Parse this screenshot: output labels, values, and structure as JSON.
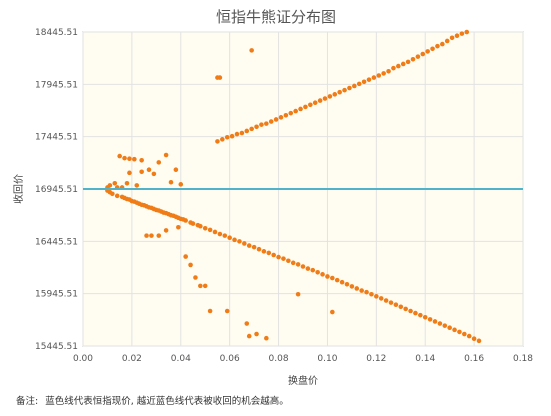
{
  "chart_data": {
    "type": "scatter",
    "title": "恒指牛熊证分布图",
    "xlabel": "换盘价",
    "ylabel": "收回价",
    "xlim": [
      0,
      0.18
    ],
    "ylim": [
      15445.51,
      18445.51
    ],
    "x_ticks": [
      "0.00",
      "0.02",
      "0.04",
      "0.06",
      "0.08",
      "0.10",
      "0.12",
      "0.14",
      "0.16",
      "0.18"
    ],
    "y_ticks": [
      "15445.51",
      "15945.51",
      "16445.51",
      "16945.51",
      "17445.51",
      "17945.51",
      "18445.51"
    ],
    "grid": true,
    "reference_line": {
      "y": 16945.51,
      "color": "#4fb3c9"
    },
    "marker_color": "#f07c17",
    "plot_background": "#fffdf2",
    "series": [
      {
        "values": [
          [
            0.01,
            16960
          ],
          [
            0.01,
            16945
          ],
          [
            0.01,
            16930
          ],
          [
            0.011,
            16915
          ],
          [
            0.011,
            16980
          ],
          [
            0.012,
            16900
          ],
          [
            0.014,
            16960
          ],
          [
            0.014,
            16880
          ],
          [
            0.016,
            16870
          ],
          [
            0.017,
            16860
          ],
          [
            0.018,
            16850
          ],
          [
            0.019,
            16845
          ],
          [
            0.02,
            16830
          ],
          [
            0.021,
            16825
          ],
          [
            0.022,
            16815
          ],
          [
            0.023,
            16805
          ],
          [
            0.024,
            16795
          ],
          [
            0.025,
            16790
          ],
          [
            0.026,
            16780
          ],
          [
            0.027,
            16770
          ],
          [
            0.028,
            16765
          ],
          [
            0.029,
            16755
          ],
          [
            0.03,
            16745
          ],
          [
            0.031,
            16740
          ],
          [
            0.032,
            16730
          ],
          [
            0.033,
            16720
          ],
          [
            0.034,
            16715
          ],
          [
            0.035,
            16705
          ],
          [
            0.036,
            16695
          ],
          [
            0.037,
            16690
          ],
          [
            0.038,
            16680
          ],
          [
            0.039,
            16670
          ],
          [
            0.04,
            16660
          ],
          [
            0.041,
            16655
          ],
          [
            0.042,
            16645
          ],
          [
            0.044,
            16625
          ],
          [
            0.045,
            16615
          ],
          [
            0.047,
            16600
          ],
          [
            0.048,
            16590
          ],
          [
            0.05,
            16570
          ],
          [
            0.052,
            16555
          ],
          [
            0.054,
            16535
          ],
          [
            0.056,
            16515
          ],
          [
            0.058,
            16500
          ],
          [
            0.06,
            16480
          ],
          [
            0.062,
            16460
          ],
          [
            0.064,
            16445
          ],
          [
            0.066,
            16425
          ],
          [
            0.068,
            16405
          ],
          [
            0.07,
            16390
          ],
          [
            0.072,
            16370
          ],
          [
            0.074,
            16350
          ],
          [
            0.076,
            16335
          ],
          [
            0.078,
            16315
          ],
          [
            0.08,
            16295
          ],
          [
            0.082,
            16280
          ],
          [
            0.084,
            16260
          ],
          [
            0.086,
            16240
          ],
          [
            0.088,
            16225
          ],
          [
            0.09,
            16205
          ],
          [
            0.092,
            16185
          ],
          [
            0.094,
            16170
          ],
          [
            0.096,
            16150
          ],
          [
            0.098,
            16130
          ],
          [
            0.1,
            16110
          ],
          [
            0.102,
            16095
          ],
          [
            0.104,
            16075
          ],
          [
            0.106,
            16055
          ],
          [
            0.108,
            16035
          ],
          [
            0.11,
            16015
          ],
          [
            0.112,
            15995
          ],
          [
            0.114,
            15975
          ],
          [
            0.116,
            15960
          ],
          [
            0.118,
            15940
          ],
          [
            0.12,
            15920
          ],
          [
            0.122,
            15900
          ],
          [
            0.124,
            15880
          ],
          [
            0.126,
            15860
          ],
          [
            0.128,
            15840
          ],
          [
            0.13,
            15820
          ],
          [
            0.132,
            15800
          ],
          [
            0.134,
            15780
          ],
          [
            0.136,
            15760
          ],
          [
            0.138,
            15740
          ],
          [
            0.14,
            15720
          ],
          [
            0.142,
            15700
          ],
          [
            0.144,
            15680
          ],
          [
            0.146,
            15660
          ],
          [
            0.148,
            15640
          ],
          [
            0.15,
            15620
          ],
          [
            0.152,
            15600
          ],
          [
            0.154,
            15580
          ],
          [
            0.156,
            15560
          ],
          [
            0.158,
            15540
          ],
          [
            0.16,
            15515
          ],
          [
            0.162,
            15495
          ],
          [
            0.026,
            16500
          ],
          [
            0.028,
            16500
          ],
          [
            0.031,
            16500
          ],
          [
            0.034,
            16550
          ],
          [
            0.039,
            16580
          ],
          [
            0.042,
            16300
          ],
          [
            0.044,
            16220
          ],
          [
            0.046,
            16100
          ],
          [
            0.048,
            16020
          ],
          [
            0.05,
            16020
          ],
          [
            0.052,
            15780
          ],
          [
            0.059,
            15780
          ],
          [
            0.067,
            15660
          ],
          [
            0.068,
            15540
          ],
          [
            0.071,
            15560
          ],
          [
            0.075,
            15520
          ],
          [
            0.088,
            15940
          ],
          [
            0.102,
            15770
          ],
          [
            0.015,
            17260
          ],
          [
            0.017,
            17240
          ],
          [
            0.019,
            17235
          ],
          [
            0.021,
            17230
          ],
          [
            0.024,
            17110
          ],
          [
            0.024,
            17220
          ],
          [
            0.027,
            17130
          ],
          [
            0.029,
            17090
          ],
          [
            0.031,
            17200
          ],
          [
            0.034,
            17270
          ],
          [
            0.036,
            17010
          ],
          [
            0.038,
            17130
          ],
          [
            0.04,
            16990
          ],
          [
            0.055,
            18010
          ],
          [
            0.056,
            18010
          ],
          [
            0.069,
            18270
          ],
          [
            0.013,
            17000
          ],
          [
            0.016,
            16960
          ],
          [
            0.019,
            17100
          ],
          [
            0.022,
            16980
          ],
          [
            0.018,
            17000
          ],
          [
            0.055,
            17400
          ],
          [
            0.057,
            17420
          ],
          [
            0.059,
            17440
          ],
          [
            0.061,
            17450
          ],
          [
            0.063,
            17470
          ],
          [
            0.065,
            17480
          ],
          [
            0.067,
            17500
          ],
          [
            0.069,
            17520
          ],
          [
            0.071,
            17540
          ],
          [
            0.073,
            17560
          ],
          [
            0.075,
            17570
          ],
          [
            0.077,
            17590
          ],
          [
            0.079,
            17610
          ],
          [
            0.081,
            17630
          ],
          [
            0.083,
            17650
          ],
          [
            0.085,
            17670
          ],
          [
            0.087,
            17690
          ],
          [
            0.089,
            17710
          ],
          [
            0.091,
            17730
          ],
          [
            0.093,
            17750
          ],
          [
            0.095,
            17770
          ],
          [
            0.097,
            17790
          ],
          [
            0.099,
            17810
          ],
          [
            0.101,
            17830
          ],
          [
            0.103,
            17850
          ],
          [
            0.105,
            17870
          ],
          [
            0.107,
            17890
          ],
          [
            0.109,
            17910
          ],
          [
            0.111,
            17930
          ],
          [
            0.113,
            17950
          ],
          [
            0.115,
            17970
          ],
          [
            0.117,
            17990
          ],
          [
            0.119,
            18010
          ],
          [
            0.121,
            18030
          ],
          [
            0.123,
            18050
          ],
          [
            0.125,
            18070
          ],
          [
            0.127,
            18100
          ],
          [
            0.129,
            18120
          ],
          [
            0.131,
            18140
          ],
          [
            0.133,
            18160
          ],
          [
            0.135,
            18185
          ],
          [
            0.137,
            18210
          ],
          [
            0.139,
            18235
          ],
          [
            0.141,
            18260
          ],
          [
            0.143,
            18285
          ],
          [
            0.145,
            18310
          ],
          [
            0.147,
            18330
          ],
          [
            0.149,
            18360
          ],
          [
            0.151,
            18390
          ],
          [
            0.153,
            18410
          ],
          [
            0.155,
            18430
          ],
          [
            0.157,
            18445
          ]
        ]
      }
    ]
  },
  "footnote": {
    "prefix": "备注:",
    "text": "蓝色线代表恒指现价, 越近蓝色线代表被收回的机会越高。"
  }
}
